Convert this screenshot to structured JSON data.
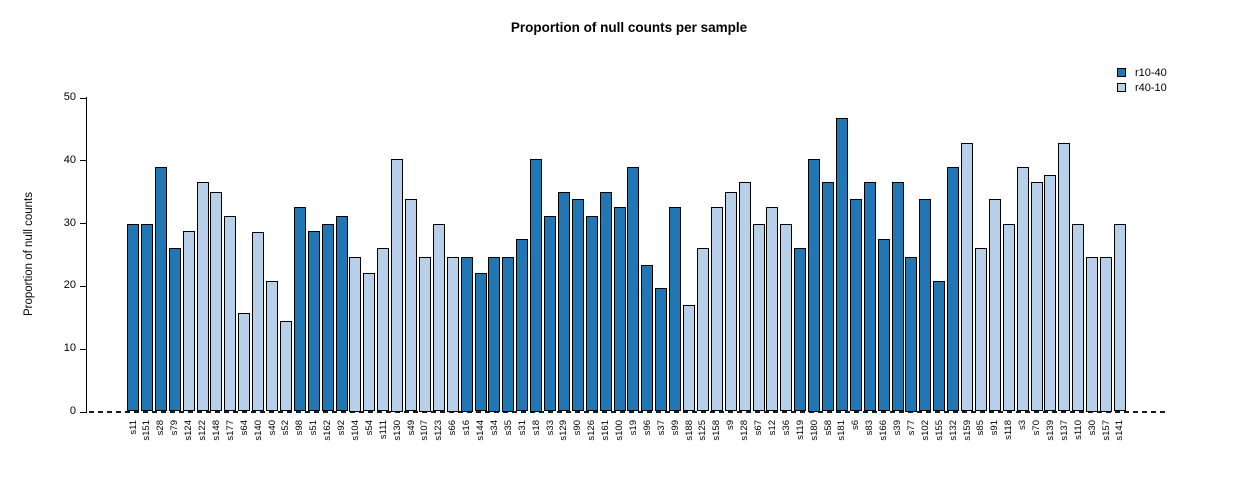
{
  "title": "Proportion of null counts per sample",
  "ylabel": "Proportion of null counts",
  "legend": {
    "entries": [
      {
        "label": "r10-40",
        "color": "#2077b4"
      },
      {
        "label": "r40-10",
        "color": "#b8cfe9"
      }
    ],
    "position": "top-right"
  },
  "chart_data": {
    "type": "bar",
    "title": "Proportion of null counts per sample",
    "xlabel": "",
    "ylabel": "Proportion of null counts",
    "ylim": [
      0,
      50
    ],
    "yticks": [
      0,
      10,
      20,
      30,
      40,
      50
    ],
    "grid": false,
    "zero_line_style": "dashed",
    "legend_position": "top-right",
    "colors": {
      "r10-40": "#2077b4",
      "r40-10": "#b8cfe9"
    },
    "bar_border_color": "#000000",
    "categories": [
      "s11",
      "s151",
      "s28",
      "s79",
      "s124",
      "s122",
      "s148",
      "s177",
      "s64",
      "s140",
      "s40",
      "s52",
      "s98",
      "s51",
      "s162",
      "s92",
      "s104",
      "s54",
      "s111",
      "s130",
      "s49",
      "s107",
      "s123",
      "s66",
      "s16",
      "s144",
      "s34",
      "s35",
      "s31",
      "s18",
      "s33",
      "s129",
      "s90",
      "s126",
      "s161",
      "s100",
      "s19",
      "s96",
      "s37",
      "s99",
      "s188",
      "s125",
      "s158",
      "s9",
      "s128",
      "s67",
      "s12",
      "s36",
      "s119",
      "s180",
      "s58",
      "s181",
      "s6",
      "s83",
      "s166",
      "s39",
      "s77",
      "s102",
      "s155",
      "s132",
      "s159",
      "s85",
      "s91",
      "s118",
      "s3",
      "s70",
      "s139",
      "s137",
      "s110",
      "s30",
      "s157",
      "s141"
    ],
    "groups": [
      "r10-40",
      "r10-40",
      "r10-40",
      "r10-40",
      "r40-10",
      "r40-10",
      "r40-10",
      "r40-10",
      "r40-10",
      "r40-10",
      "r40-10",
      "r40-10",
      "r10-40",
      "r10-40",
      "r10-40",
      "r10-40",
      "r40-10",
      "r40-10",
      "r40-10",
      "r40-10",
      "r40-10",
      "r40-10",
      "r40-10",
      "r40-10",
      "r10-40",
      "r10-40",
      "r10-40",
      "r10-40",
      "r10-40",
      "r10-40",
      "r10-40",
      "r10-40",
      "r10-40",
      "r10-40",
      "r10-40",
      "r10-40",
      "r10-40",
      "r10-40",
      "r10-40",
      "r10-40",
      "r40-10",
      "r40-10",
      "r40-10",
      "r40-10",
      "r40-10",
      "r40-10",
      "r40-10",
      "r40-10",
      "r10-40",
      "r10-40",
      "r10-40",
      "r10-40",
      "r10-40",
      "r10-40",
      "r10-40",
      "r10-40",
      "r10-40",
      "r10-40",
      "r10-40",
      "r10-40",
      "r40-10",
      "r40-10",
      "r40-10",
      "r40-10",
      "r40-10",
      "r40-10",
      "r40-10",
      "r40-10",
      "r40-10",
      "r40-10",
      "r40-10",
      "r40-10"
    ],
    "values": [
      29.9,
      29.9,
      39.0,
      26.1,
      28.7,
      36.5,
      35.0,
      31.2,
      15.7,
      28.6,
      20.8,
      14.4,
      32.5,
      28.7,
      29.9,
      31.2,
      24.6,
      22.1,
      26.1,
      40.2,
      33.8,
      24.6,
      29.9,
      24.6,
      24.6,
      22.0,
      24.6,
      24.6,
      27.4,
      40.2,
      31.2,
      35.0,
      33.8,
      31.2,
      35.0,
      32.5,
      39.0,
      23.3,
      19.6,
      32.5,
      17.0,
      26.1,
      32.5,
      35.0,
      36.5,
      29.9,
      32.5,
      29.9,
      26.1,
      40.2,
      36.5,
      46.8,
      33.8,
      36.5,
      27.4,
      36.5,
      24.6,
      33.8,
      20.8,
      39.0,
      42.8,
      26.1,
      33.8,
      29.9,
      39.0,
      36.5,
      37.7,
      42.8,
      29.9,
      24.6,
      24.6,
      29.9
    ]
  }
}
